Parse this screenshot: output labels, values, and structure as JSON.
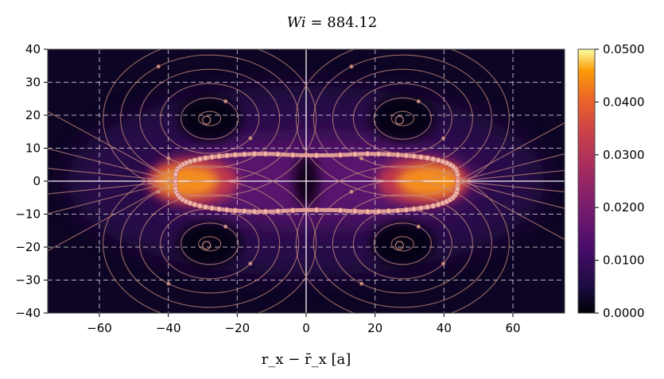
{
  "chart_data": {
    "type": "heatmap",
    "title": "Wi = 884.12",
    "title_symbol": "Wi",
    "title_value": "884.12",
    "xlabel": "r_x − r̄_x [a]",
    "ylabel": "",
    "xlim": [
      -75,
      75
    ],
    "ylim": [
      -40,
      40
    ],
    "x_ticks": [
      -60,
      -40,
      -20,
      0,
      20,
      40,
      60
    ],
    "y_ticks": [
      -40,
      -30,
      -20,
      -10,
      0,
      10,
      20,
      30,
      40
    ],
    "x_tick_labels": [
      "−60",
      "−40",
      "−20",
      "0",
      "20",
      "40",
      "60"
    ],
    "y_tick_labels": [
      "−40",
      "−30",
      "−20",
      "−10",
      "0",
      "10",
      "20",
      "30",
      "40"
    ],
    "grid": true,
    "colorscale": "inferno",
    "colorbar": {
      "min": 0.0,
      "max": 0.05,
      "ticks": [
        0.0,
        0.01,
        0.02,
        0.03,
        0.04,
        0.05
      ],
      "tick_labels": [
        "0.0000",
        "0.0100",
        "0.0200",
        "0.0300",
        "0.0400",
        "0.0500"
      ]
    },
    "density_peaks": [
      {
        "x": -33,
        "y": 0,
        "value": 0.046
      },
      {
        "x": 34,
        "y": 0,
        "value": 0.045
      }
    ],
    "vortex_centers": [
      {
        "x": -28,
        "y": 19
      },
      {
        "x": 28,
        "y": 19
      },
      {
        "x": -28,
        "y": -19
      },
      {
        "x": 28,
        "y": -19
      }
    ],
    "boundary_extent": {
      "x": [
        -38,
        44
      ],
      "y": [
        -9.5,
        8.5
      ]
    },
    "streamlines": true,
    "colors": {
      "streamline": "#c98c7c",
      "boundary": "#e8a39a",
      "grid": "#dcdcdc",
      "axis_line": "#ffffff"
    }
  }
}
